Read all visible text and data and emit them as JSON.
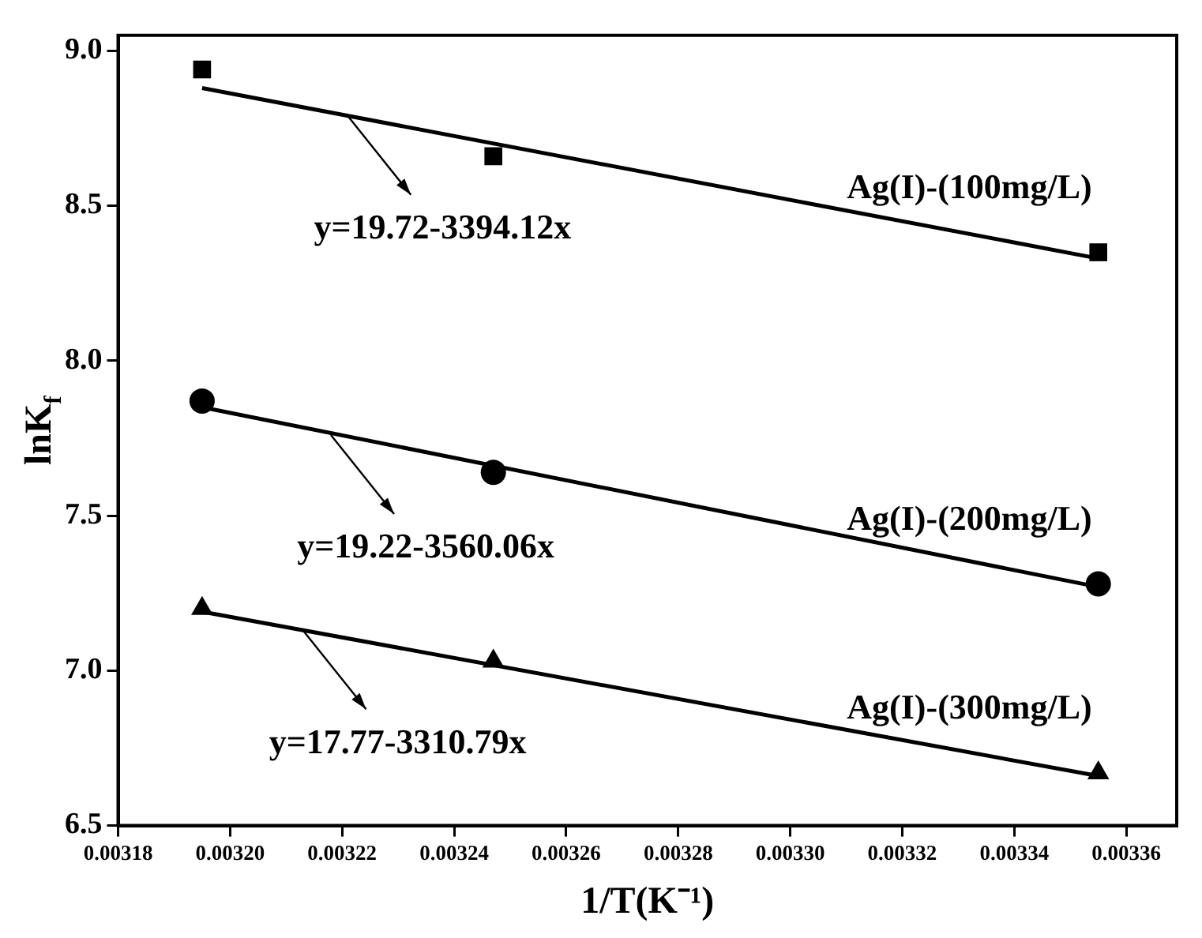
{
  "chart_data": {
    "type": "scatter",
    "xlabel": "1/T(K⁻¹)",
    "ylabel": "lnK$_{f}$",
    "xlim": [
      0.00318,
      0.003369
    ],
    "ylim": [
      6.5,
      9.05
    ],
    "xticks": [
      0.00318,
      {
        "value": 0.0032,
        "label": "0.00320"
      },
      0.00322,
      0.00324,
      0.00326,
      0.00328,
      {
        "value": 0.0033,
        "label": "0.00330"
      },
      0.00332,
      0.00334,
      0.00336
    ],
    "yticks": [
      {
        "value": 6.5,
        "label": "6.5"
      },
      {
        "value": 7,
        "label": "7.0"
      },
      {
        "value": 7.5,
        "label": "7.5"
      },
      {
        "value": 8,
        "label": "8.0"
      },
      {
        "value": 8.5,
        "label": "8.5"
      },
      {
        "value": 9,
        "label": "9.0"
      }
    ],
    "grid": false,
    "legend": false,
    "series": [
      {
        "name": "Ag(I)-(100mg/L)",
        "color": "#000000",
        "marker": "square",
        "x": [
          0.003195,
          0.003247,
          0.003355
        ],
        "values": [
          8.94,
          8.66,
          8.35
        ]
      },
      {
        "name": "Ag(I)-(200mg/L)",
        "color": "#000000",
        "marker": "circle",
        "x": [
          0.003195,
          0.003247,
          0.003355
        ],
        "values": [
          7.87,
          7.64,
          7.28
        ]
      },
      {
        "name": "Ag(I)-(300mg/L)",
        "color": "#000000",
        "marker": "triangle",
        "x": [
          0.003195,
          0.003247,
          0.003355
        ],
        "values": [
          7.2,
          7.03,
          6.67
        ]
      },
      {
        "type": "line",
        "color": "#000000",
        "marker": "none",
        "x": [
          0.003195,
          0.003355
        ],
        "values": [
          8.88,
          8.33
        ]
      },
      {
        "type": "line",
        "color": "#000000",
        "marker": "none",
        "x": [
          0.003195,
          0.003355
        ],
        "values": [
          7.85,
          7.27
        ]
      },
      {
        "type": "line",
        "color": "#000000",
        "marker": "none",
        "x": [
          0.003195,
          0.003355
        ],
        "values": [
          7.19,
          6.66
        ]
      }
    ],
    "annotations": [
      {
        "text": "y=19.72-3394.12x",
        "x": 0.003221,
        "y": 8.79
      },
      {
        "text": "y=19.22-3560.06x",
        "x": 0.003218,
        "y": 7.76
      },
      {
        "text": "y=17.77-3310.79x",
        "x": 0.003213,
        "y": 7.13
      }
    ]
  }
}
